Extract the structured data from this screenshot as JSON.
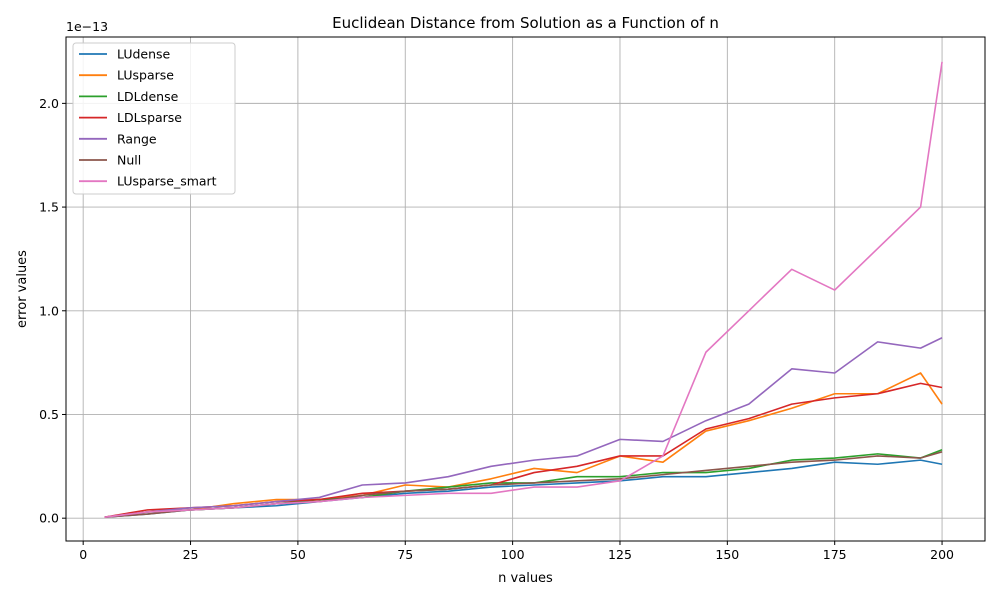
{
  "chart_data": {
    "type": "line",
    "title": "Euclidean Distance from Solution as a Function of n",
    "xlabel": "n values",
    "ylabel": "error values",
    "scale_label": "1e−13",
    "xlim": [
      -4,
      210
    ],
    "ylim": [
      -0.11,
      2.32
    ],
    "x_ticks": [
      0,
      25,
      50,
      75,
      100,
      125,
      150,
      175,
      200
    ],
    "x_tick_labels": [
      "0",
      "25",
      "50",
      "75",
      "100",
      "125",
      "150",
      "175",
      "200"
    ],
    "y_ticks": [
      0.0,
      0.5,
      1.0,
      1.5,
      2.0
    ],
    "y_tick_labels": [
      "0.0",
      "0.5",
      "1.0",
      "1.5",
      "2.0"
    ],
    "grid": true,
    "legend_position": "top-left",
    "x": [
      5,
      15,
      25,
      35,
      45,
      55,
      65,
      75,
      85,
      95,
      105,
      115,
      125,
      135,
      145,
      155,
      165,
      175,
      185,
      195,
      200
    ],
    "series": [
      {
        "name": "LUdense",
        "color": "#1f77b4",
        "values": [
          0.005,
          0.02,
          0.04,
          0.05,
          0.06,
          0.08,
          0.1,
          0.12,
          0.13,
          0.15,
          0.16,
          0.17,
          0.18,
          0.2,
          0.2,
          0.22,
          0.24,
          0.27,
          0.26,
          0.28,
          0.26
        ]
      },
      {
        "name": "LUsparse",
        "color": "#ff7f0e",
        "values": [
          0.005,
          0.03,
          0.04,
          0.07,
          0.09,
          0.09,
          0.11,
          0.16,
          0.15,
          0.19,
          0.24,
          0.22,
          0.3,
          0.27,
          0.42,
          0.47,
          0.53,
          0.6,
          0.6,
          0.7,
          0.55
        ]
      },
      {
        "name": "LDLdense",
        "color": "#2ca02c",
        "values": [
          0.005,
          0.03,
          0.04,
          0.05,
          0.07,
          0.09,
          0.1,
          0.13,
          0.15,
          0.17,
          0.17,
          0.2,
          0.2,
          0.22,
          0.22,
          0.24,
          0.28,
          0.29,
          0.31,
          0.29,
          0.33
        ]
      },
      {
        "name": "LDLsparse",
        "color": "#d62728",
        "values": [
          0.005,
          0.04,
          0.05,
          0.06,
          0.08,
          0.09,
          0.12,
          0.13,
          0.14,
          0.16,
          0.22,
          0.25,
          0.3,
          0.3,
          0.43,
          0.48,
          0.55,
          0.58,
          0.6,
          0.65,
          0.63
        ]
      },
      {
        "name": "Range",
        "color": "#9467bd",
        "values": [
          0.005,
          0.03,
          0.05,
          0.06,
          0.08,
          0.1,
          0.16,
          0.17,
          0.2,
          0.25,
          0.28,
          0.3,
          0.38,
          0.37,
          0.47,
          0.55,
          0.72,
          0.7,
          0.85,
          0.82,
          0.87
        ]
      },
      {
        "name": "Null",
        "color": "#8c564b",
        "values": [
          0.005,
          0.02,
          0.04,
          0.05,
          0.07,
          0.08,
          0.11,
          0.13,
          0.14,
          0.16,
          0.17,
          0.18,
          0.19,
          0.21,
          0.23,
          0.25,
          0.27,
          0.28,
          0.3,
          0.29,
          0.32
        ]
      },
      {
        "name": "LUsparse_smart",
        "color": "#e377c2",
        "values": [
          0.005,
          0.03,
          0.04,
          0.05,
          0.07,
          0.08,
          0.1,
          0.11,
          0.12,
          0.12,
          0.15,
          0.15,
          0.18,
          0.3,
          0.8,
          1.0,
          1.2,
          1.1,
          1.3,
          1.5,
          2.2
        ]
      }
    ]
  }
}
